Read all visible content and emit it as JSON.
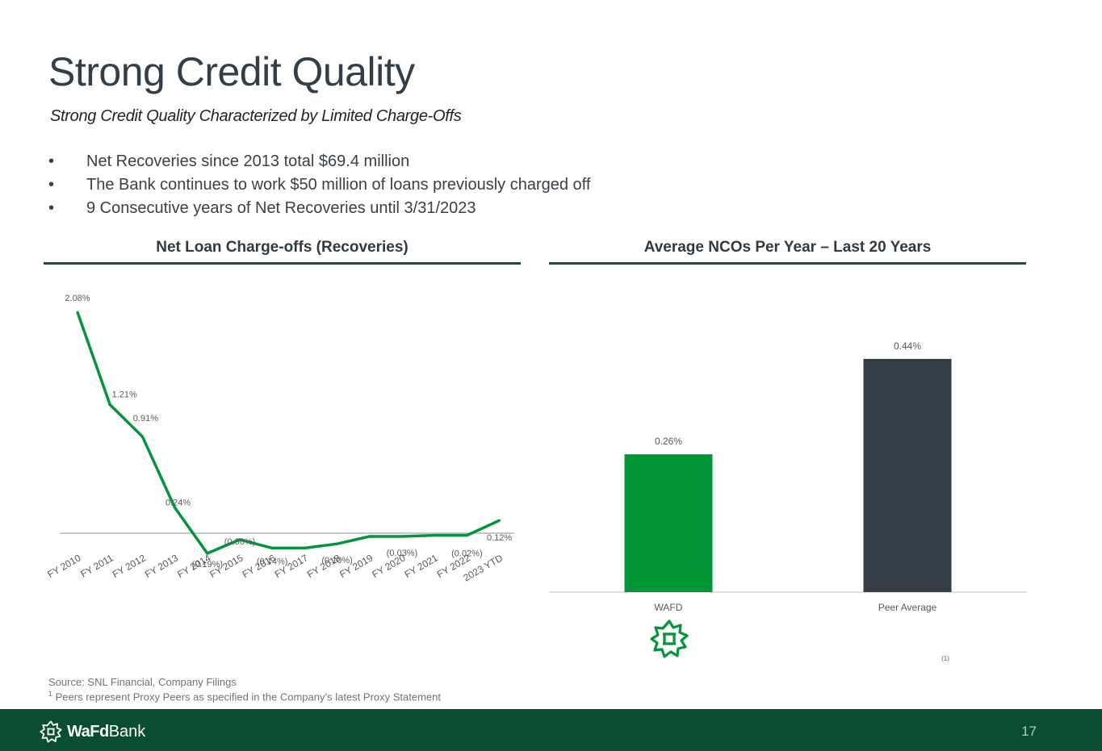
{
  "slide": {
    "title": "Strong Credit Quality",
    "subtitle": "Strong Credit Quality Characterized by Limited Charge-Offs",
    "bullets": [
      "Net Recoveries since 2013 total $69.4 million",
      "The Bank continues to work $50 million of loans previously charged off",
      "9 Consecutive years of Net Recoveries until 3/31/2023"
    ],
    "source": "Source: SNL Financial, Company Filings",
    "footnote_mark": "1",
    "footnote": " Peers represent Proxy Peers as specified in the Company’s latest Proxy Statement",
    "brand_bold": "WaFd",
    "brand_regular": "Bank",
    "page_number": "17"
  },
  "colors": {
    "green": "#039639",
    "dark": "#333d46",
    "rule": "#12503c",
    "footer": "#0a4e31"
  },
  "chart_data": [
    {
      "type": "line",
      "title": "Net Loan Charge-offs (Recoveries)",
      "categories": [
        "FY 2010",
        "FY 2011",
        "FY 2012",
        "FY 2013",
        "FY 2014",
        "FY 2015",
        "FY 2016",
        "FY 2017",
        "FY 2018",
        "FY 2019",
        "FY 2020",
        "FY 2021",
        "FY 2022",
        "2023 YTD"
      ],
      "values": [
        2.08,
        1.21,
        0.91,
        0.24,
        -0.19,
        -0.06,
        -0.14,
        -0.14,
        -0.1,
        -0.03,
        -0.03,
        -0.02,
        -0.02,
        0.12
      ],
      "labels": [
        "2.08%",
        "1.21%",
        "0.91%",
        "0.24%",
        "(0.19%)",
        "(0.06%)",
        "(0.14%)",
        "",
        "(0.10%)",
        "",
        "(0.03%)",
        "",
        "(0.02%)",
        "0.12%"
      ],
      "ylim": [
        -0.3,
        2.2
      ],
      "series_color": "#039639"
    },
    {
      "type": "bar",
      "title": "Average NCOs Per Year – Last 20 Years",
      "categories": [
        "WAFD",
        "Peer Average"
      ],
      "values": [
        0.26,
        0.44
      ],
      "labels": [
        "0.26%",
        "0.44%"
      ],
      "colors": [
        "#039639",
        "#333d46"
      ],
      "footnote_ref": "(1)",
      "ylim": [
        0,
        0.5
      ]
    }
  ]
}
